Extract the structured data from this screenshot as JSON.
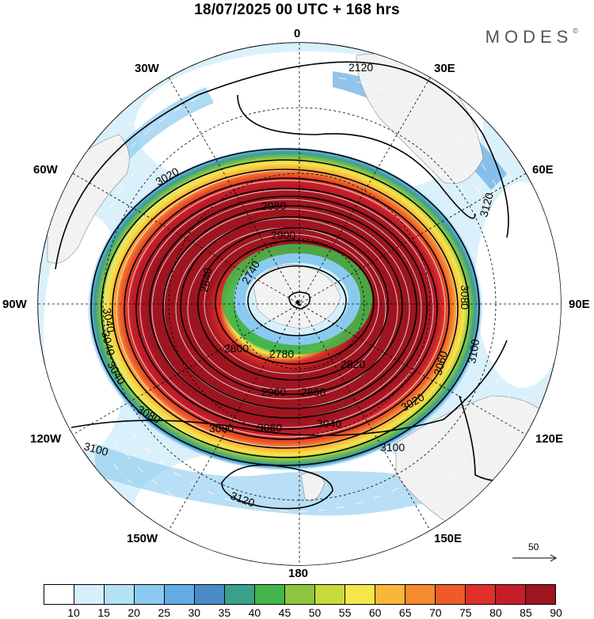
{
  "title": "18/07/2025  00 UTC  + 168 hrs",
  "brand": "MODES",
  "brand_mark": "©",
  "longitude_labels": {
    "lon_0": "0",
    "lon_30e": "30E",
    "lon_60e": "60E",
    "lon_90e": "90E",
    "lon_120e": "120E",
    "lon_150e": "150E",
    "lon_180": "180",
    "lon_150w": "150W",
    "lon_120w": "120W",
    "lon_90w": "90W",
    "lon_60w": "60W",
    "lon_30w": "30W"
  },
  "contour_labels": [
    "2120",
    "3120",
    "3100",
    "3080",
    "3060",
    "3040",
    "3020",
    "2980",
    "2900",
    "2840",
    "2740",
    "2780",
    "2800",
    "2820",
    "2860",
    "2960",
    "3080",
    "3060",
    "3040",
    "3100",
    "3120",
    "3100",
    "3080",
    "3040",
    "3040",
    "3020"
  ],
  "reference_vector": {
    "value": "50",
    "icon": "arrow-right-icon"
  },
  "colorbar": {
    "labels": [
      "10",
      "15",
      "20",
      "25",
      "30",
      "35",
      "40",
      "45",
      "50",
      "55",
      "60",
      "65",
      "70",
      "75",
      "80",
      "85",
      "90"
    ],
    "colors": [
      "#ffffff",
      "#d6f0fb",
      "#b3e2f7",
      "#8bcaf0",
      "#63abe3",
      "#4a8bc7",
      "#3aa08a",
      "#44b54a",
      "#8cc63f",
      "#c6da3c",
      "#f7e64a",
      "#f9b63a",
      "#f58a2e",
      "#ee5a2a",
      "#e0302a",
      "#c41e2a",
      "#9e1520"
    ]
  }
}
